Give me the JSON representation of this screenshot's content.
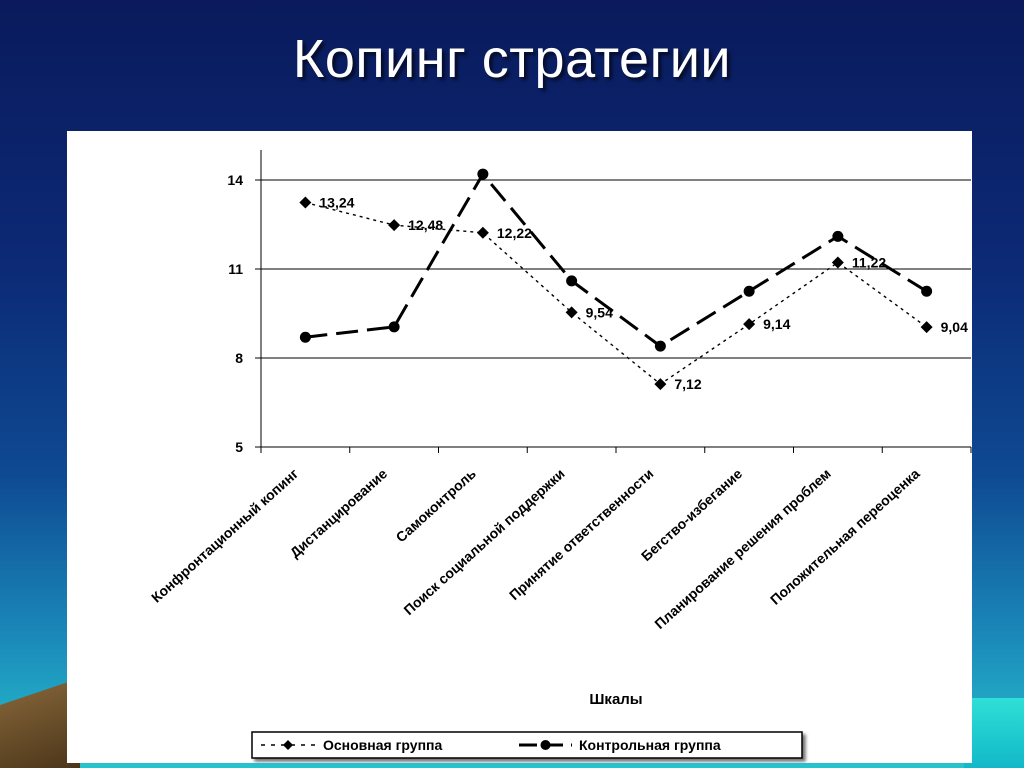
{
  "slide": {
    "title": "Копинг стратегии"
  },
  "colors": {
    "background_top": "#0a1a5c",
    "background_bottom": "#27c3cf",
    "panel": "#ffffff",
    "series": "#000000"
  },
  "chart_data": {
    "type": "line",
    "xlabel": "Шкалы",
    "ylabel": "",
    "ylim": [
      5,
      14
    ],
    "yticks": [
      5,
      8,
      11,
      14
    ],
    "grid": true,
    "legend": "bottom",
    "categories": [
      "Конфронтационный копинг",
      "Дистанцирование",
      "Самоконтроль",
      "Поиск социальной поддержки",
      "Принятие ответственности",
      "Бегство-избегание",
      "Планирование решения проблем",
      "Положительная переоценка"
    ],
    "series": [
      {
        "name": "Основная группа",
        "marker": "diamond",
        "dash": "dotted",
        "values": [
          13.24,
          12.48,
          12.22,
          9.54,
          7.12,
          9.14,
          11.22,
          9.04
        ],
        "labels": [
          "13,24",
          "12,48",
          "12,22",
          "9,54",
          "7,12",
          "9,14",
          "11,22",
          "9,04"
        ]
      },
      {
        "name": "Контрольная группа",
        "marker": "circle",
        "dash": "dashed",
        "values": [
          8.7,
          9.05,
          14.2,
          10.6,
          8.4,
          10.25,
          12.1,
          10.25
        ]
      }
    ]
  }
}
